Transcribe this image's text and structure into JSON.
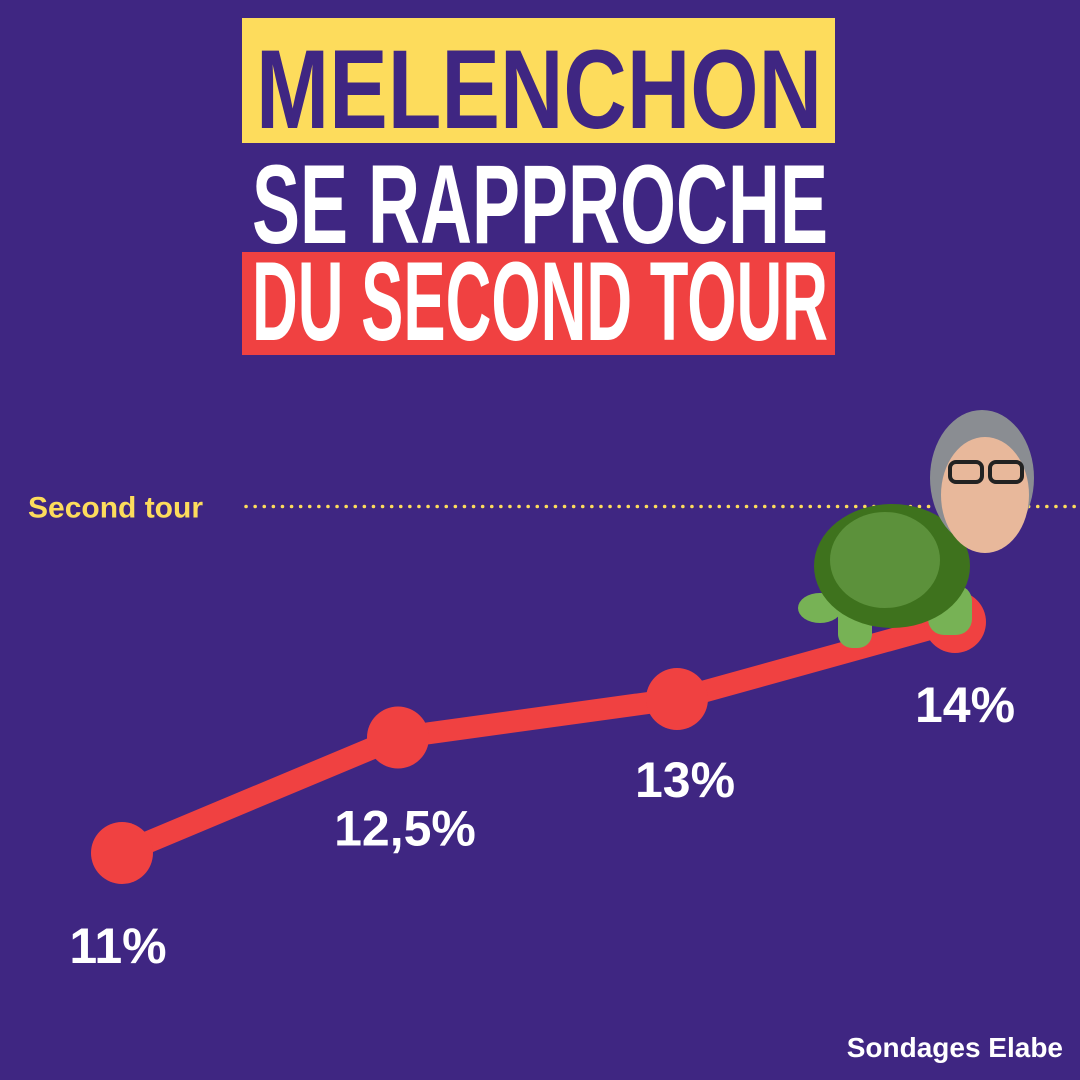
{
  "chart_data": {
    "type": "line",
    "title_lines": [
      "MELENCHON",
      "SE RAPPROCHE",
      "DU SECOND TOUR"
    ],
    "categories": [
      null,
      null,
      null,
      null
    ],
    "values": [
      11,
      12.5,
      13,
      14
    ],
    "value_labels": [
      "11%",
      "12,5%",
      "13%",
      "14%"
    ],
    "color": "#f04141",
    "ylim": [
      9,
      17
    ],
    "threshold": {
      "label": "Second tour",
      "value": 15.5,
      "color": "#fddc5c"
    },
    "source": "Sondages Elabe"
  }
}
